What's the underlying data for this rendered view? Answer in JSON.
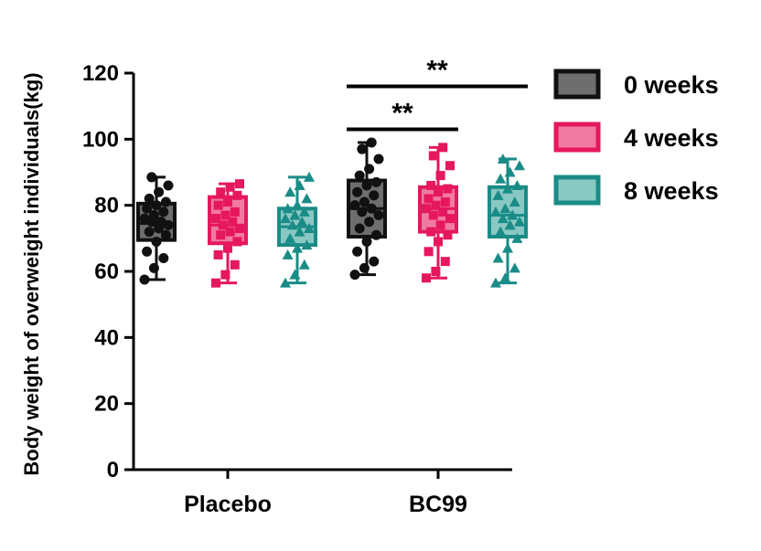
{
  "chart_data": {
    "type": "box",
    "title": "",
    "xlabel": "",
    "ylabel": "Body weight of overweight individuals(kg)",
    "ylim": [
      0,
      120
    ],
    "yticks": [
      0,
      20,
      40,
      60,
      80,
      100,
      120
    ],
    "categories": [
      "Placebo",
      "BC99"
    ],
    "legend_position": "top-right",
    "series": [
      {
        "name": "0 weeks",
        "color": "#111111",
        "fill": "#6e6e6e",
        "boxes": [
          {
            "min": 57.5,
            "q1": 69.5,
            "median": 74.5,
            "q3": 80.5,
            "max": 88.5,
            "points": [
              57.5,
              61,
              64,
              66,
              69,
              71,
              72,
              73,
              74,
              75,
              75,
              76,
              77,
              78,
              79,
              80,
              81,
              82,
              84,
              86,
              88.5
            ]
          },
          {
            "min": 59,
            "q1": 70.5,
            "median": 79,
            "q3": 87.5,
            "max": 99,
            "points": [
              59,
              61,
              63,
              66,
              69,
              71,
              73,
              75,
              77,
              78,
              79,
              80,
              81,
              83,
              84,
              86,
              87,
              89,
              91,
              94,
              97,
              99
            ]
          }
        ]
      },
      {
        "name": "4 weeks",
        "color": "#e6175f",
        "fill": "#f07aa1",
        "boxes": [
          {
            "min": 56.5,
            "q1": 68.5,
            "median": 74,
            "q3": 82.5,
            "max": 86.5,
            "points": [
              56.5,
              59,
              62,
              65,
              67,
              69,
              71,
              72,
              73,
              74,
              75,
              76,
              77,
              78,
              80,
              81,
              83,
              84,
              85.5,
              86.5
            ]
          },
          {
            "min": 58,
            "q1": 72,
            "median": 79,
            "q3": 85.5,
            "max": 97.5,
            "points": [
              58,
              60,
              63,
              66,
              69,
              71,
              72,
              74,
              76,
              77,
              78,
              79,
              80,
              81,
              82,
              84,
              85,
              86,
              89,
              92,
              95,
              97.5
            ]
          }
        ]
      },
      {
        "name": "8 weeks",
        "color": "#1a8c87",
        "fill": "#89c8c3",
        "boxes": [
          {
            "min": 56.5,
            "q1": 68,
            "median": 73.5,
            "q3": 79,
            "max": 88.5,
            "points": [
              56.5,
              59,
              62,
              65,
              67,
              68,
              70,
              72,
              73,
              74,
              75,
              76,
              77,
              78,
              79,
              80,
              82,
              84,
              86,
              88.5
            ]
          },
          {
            "min": 56.5,
            "q1": 70.5,
            "median": 77,
            "q3": 85.5,
            "max": 94,
            "points": [
              56.5,
              58,
              61,
              64,
              67,
              70,
              72,
              74,
              75,
              76,
              77,
              78,
              79,
              81,
              83,
              85,
              86,
              88,
              90,
              92,
              94
            ]
          }
        ]
      }
    ],
    "annotations": [
      {
        "text": "**",
        "group": "BC99",
        "from_series": "0 weeks",
        "to_series": "4 weeks",
        "y": 103
      },
      {
        "text": "**",
        "group": "BC99",
        "from_series": "0 weeks",
        "to_series": "8 weeks",
        "y": 116
      }
    ]
  }
}
